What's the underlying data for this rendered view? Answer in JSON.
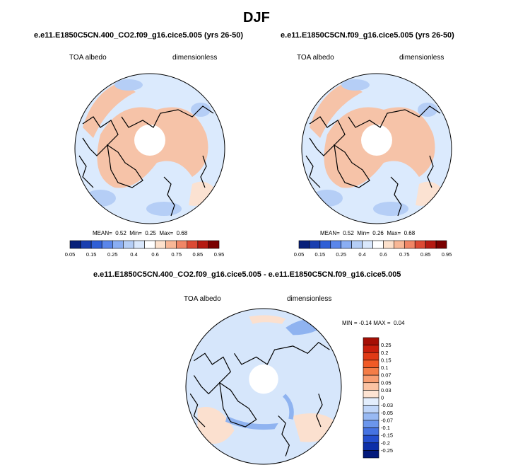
{
  "page": {
    "title": "DJF",
    "colors": {
      "ocean_base": "#dbeafd",
      "warm_patch": "#f6c3a8",
      "cold_patch": "#b5cef6",
      "diff_base": "#d6e6fb",
      "diff_warm": "#fbe0cf",
      "diff_cold": "#8fb3f0",
      "coast": "#000000"
    }
  },
  "chart_data": [
    {
      "type": "heatmap",
      "projection": "north-polar-stereographic",
      "subtitle": "e.e11.E1850C5CN.400_CO2.f09_g16.cice5.005 (yrs 26-50)",
      "left_label": "TOA albedo",
      "right_label": "dimensionless",
      "stats": {
        "mean_label": "MEAN=",
        "mean": "0.52",
        "min_label": "Min=",
        "min": "0.25",
        "max_label": "Max=",
        "max": "0.68"
      },
      "colorbar": {
        "orientation": "horizontal",
        "ticks": [
          "0.05",
          "0.15",
          "0.25",
          "0.4",
          "0.6",
          "0.75",
          "0.85",
          "0.95"
        ],
        "colors": [
          "#08207a",
          "#1a3fb0",
          "#2f5fd6",
          "#5a86ea",
          "#8aaef3",
          "#b5cef6",
          "#dae8fc",
          "#ffffff",
          "#fde1cc",
          "#f8b796",
          "#f08666",
          "#dc4a34",
          "#b51a12",
          "#7a0000"
        ]
      }
    },
    {
      "type": "heatmap",
      "projection": "north-polar-stereographic",
      "subtitle": "e.e11.E1850C5CN.f09_g16.cice5.005 (yrs 26-50)",
      "left_label": "TOA albedo",
      "right_label": "dimensionless",
      "stats": {
        "mean_label": "MEAN=",
        "mean": "0.52",
        "min_label": "Min=",
        "min": "0.26",
        "max_label": "Max=",
        "max": "0.68"
      },
      "colorbar": {
        "orientation": "horizontal",
        "ticks": [
          "0.05",
          "0.15",
          "0.25",
          "0.4",
          "0.6",
          "0.75",
          "0.85",
          "0.95"
        ],
        "colors": [
          "#08207a",
          "#1a3fb0",
          "#2f5fd6",
          "#5a86ea",
          "#8aaef3",
          "#b5cef6",
          "#dae8fc",
          "#ffffff",
          "#fde1cc",
          "#f8b796",
          "#f08666",
          "#dc4a34",
          "#b51a12",
          "#7a0000"
        ]
      }
    },
    {
      "type": "heatmap",
      "projection": "north-polar-stereographic",
      "subtitle": "e.e11.E1850C5CN.400_CO2.f09_g16.cice5.005 - e.e11.E1850C5CN.f09_g16.cice5.005",
      "left_label": "TOA albedo",
      "right_label": "dimensionless",
      "stats": {
        "min_label": "MIN =",
        "min": "-0.14",
        "max_label": "MAX =",
        "max": "0.04"
      },
      "colorbar": {
        "orientation": "vertical",
        "ticks": [
          "0.25",
          "0.2",
          "0.15",
          "0.1",
          "0.07",
          "0.05",
          "0.03",
          "0",
          "-0.03",
          "-0.05",
          "-0.07",
          "-0.1",
          "-0.15",
          "-0.2",
          "-0.25"
        ],
        "colors": [
          "#a50f05",
          "#c81e0c",
          "#e03a16",
          "#f05a26",
          "#f47d47",
          "#f89e72",
          "#fbc3a3",
          "#fde3d2",
          "#e3eefd",
          "#c0d6f9",
          "#98b9f3",
          "#6b96ec",
          "#4673e2",
          "#254fcf",
          "#0d2fa8",
          "#041a7c"
        ]
      }
    }
  ]
}
